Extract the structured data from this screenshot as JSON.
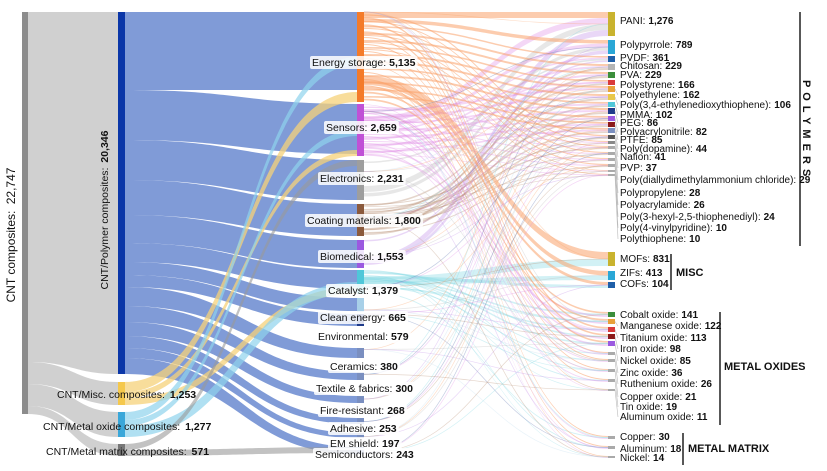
{
  "root": {
    "label": "CNT composites:",
    "value": "22,747"
  },
  "level1": [
    {
      "id": "poly",
      "label": "CNT/Polymer composites:",
      "value": "20,346",
      "color": "#0a36a8"
    },
    {
      "id": "misc",
      "label": "CNT/Misc. composites:",
      "value": "1,253",
      "color": "#f5c84c"
    },
    {
      "id": "mox",
      "label": "CNT/Metal oxide composites:",
      "value": "1,277",
      "color": "#3aa7d9"
    },
    {
      "id": "mmx",
      "label": "CNT/Metal matrix composites:",
      "value": "571",
      "color": "#777777"
    }
  ],
  "applications": [
    {
      "label": "Energy storage:",
      "value": "5,135",
      "color": "#f47b2a"
    },
    {
      "label": "Sensors:",
      "value": "2,659",
      "color": "#c051d6"
    },
    {
      "label": "Electronics:",
      "value": "2,231",
      "color": "#9e9e9e"
    },
    {
      "label": "Coating materials:",
      "value": "1,800",
      "color": "#8b5a3c"
    },
    {
      "label": "Biomedical:",
      "value": "1,553",
      "color": "#9b59e0"
    },
    {
      "label": "Catalyst:",
      "value": "1,379",
      "color": "#4fc7d9"
    },
    {
      "label": "Clean energy:",
      "value": "665",
      "color": "#a8d0e8"
    },
    {
      "label": "Environmental:",
      "value": "579",
      "color": "#1f3b8a"
    },
    {
      "label": "Ceramics:",
      "value": "380",
      "color": "#7a8fc0"
    },
    {
      "label": "Textile & fabrics:",
      "value": "300",
      "color": "#7a8fc0"
    },
    {
      "label": "Fire-resistant:",
      "value": "268",
      "color": "#7a8fc0"
    },
    {
      "label": "Adhesive:",
      "value": "253",
      "color": "#7a8fc0"
    },
    {
      "label": "EM shield:",
      "value": "197",
      "color": "#7a8fc0"
    },
    {
      "label": "Semiconductors:",
      "value": "243",
      "color": "#7a8fc0"
    }
  ],
  "materials": [
    {
      "label": "PANI:",
      "value": "1,276",
      "color": "#c9b32e"
    },
    {
      "label": "Polypyrrole:",
      "value": "789",
      "color": "#2aa7d6"
    },
    {
      "label": "PVDF:",
      "value": "361",
      "color": "#1f5fa8"
    },
    {
      "label": "Chitosan:",
      "value": "229",
      "color": "#b5b5b5"
    },
    {
      "label": "PVA:",
      "value": "229",
      "color": "#3b8e3b"
    },
    {
      "label": "Polystyrene:",
      "value": "166",
      "color": "#d93a3a"
    },
    {
      "label": "Polyethylene:",
      "value": "162",
      "color": "#e8a13a"
    },
    {
      "label": "Poly(3,4-ethylenedioxythiophene):",
      "value": "106",
      "color": "#e8c84a"
    },
    {
      "label": "PMMA:",
      "value": "102",
      "color": "#4fc7d9"
    },
    {
      "label": "PEG:",
      "value": "86",
      "color": "#1f3b8a"
    },
    {
      "label": "Polyacrylonitrile:",
      "value": "82",
      "color": "#9b59e0"
    },
    {
      "label": "PTFE:",
      "value": "85",
      "color": "#8b1a1a"
    },
    {
      "label": "Poly(dopamine):",
      "value": "44",
      "color": "#7a8fc0"
    },
    {
      "label": "Nafion:",
      "value": "41",
      "color": "#555555"
    },
    {
      "label": "PVP:",
      "value": "37",
      "color": "#888888"
    },
    {
      "label": "Poly(diallydimethylammonium chloride):",
      "value": "29",
      "color": "#aaaaaa"
    },
    {
      "label": "Polypropylene:",
      "value": "28",
      "color": "#aaaaaa"
    },
    {
      "label": "Polyacrylamide:",
      "value": "26",
      "color": "#aaaaaa"
    },
    {
      "label": "Poly(3-hexyl-2,5-thiophenediyl):",
      "value": "24",
      "color": "#aaaaaa"
    },
    {
      "label": "Poly(4-vinylpyridine):",
      "value": "10",
      "color": "#aaaaaa"
    },
    {
      "label": "Polythiophene:",
      "value": "10",
      "color": "#aaaaaa"
    },
    {
      "label": "MOFs:",
      "value": "831",
      "color": "#c9b32e"
    },
    {
      "label": "ZIFs:",
      "value": "413",
      "color": "#2aa7d6"
    },
    {
      "label": "COFs:",
      "value": "104",
      "color": "#1f5fa8"
    },
    {
      "label": "Cobalt oxide:",
      "value": "141",
      "color": "#3b8e3b"
    },
    {
      "label": "Manganese oxide:",
      "value": "122",
      "color": "#e8a13a"
    },
    {
      "label": "Titanium oxide:",
      "value": "113",
      "color": "#d93a3a"
    },
    {
      "label": "Iron oxide:",
      "value": "98",
      "color": "#8b1a1a"
    },
    {
      "label": "Nickel oxide:",
      "value": "85",
      "color": "#9b59e0"
    },
    {
      "label": "Zinc oxide:",
      "value": "36",
      "color": "#aaaaaa"
    },
    {
      "label": "Ruthenium oxide:",
      "value": "26",
      "color": "#aaaaaa"
    },
    {
      "label": "Copper oxide:",
      "value": "21",
      "color": "#aaaaaa"
    },
    {
      "label": "Tin oxide:",
      "value": "19",
      "color": "#aaaaaa"
    },
    {
      "label": "Aluminum oxide:",
      "value": "11",
      "color": "#aaaaaa"
    },
    {
      "label": "Copper:",
      "value": "30",
      "color": "#aaaaaa"
    },
    {
      "label": "Aluminum:",
      "value": "18",
      "color": "#aaaaaa"
    },
    {
      "label": "Nickel:",
      "value": "14",
      "color": "#aaaaaa"
    }
  ],
  "groups": {
    "polymers": "P O L Y M E R S",
    "misc": "MISC",
    "metal_oxides": "METAL OXIDES",
    "metal_matrix": "METAL MATRIX"
  }
}
